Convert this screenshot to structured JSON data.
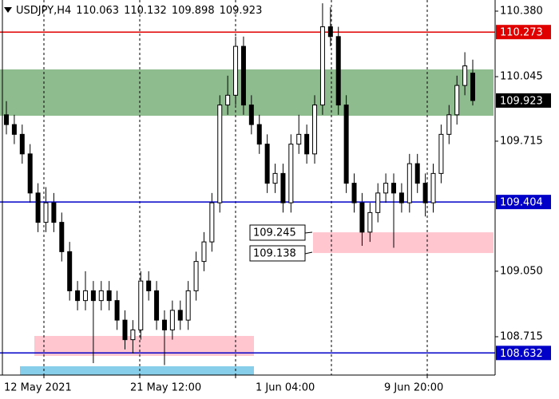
{
  "chart_data": {
    "type": "candlestick",
    "symbol": "USDJPY,H4",
    "ylim": [
      108.519,
      110.437
    ],
    "yticks": [
      {
        "value": 110.38,
        "label": "110.380"
      },
      110.045,
      109.715,
      {
        "value": 109.05,
        "label": "109.050"
      },
      108.715
    ],
    "x_labels": [
      "12 May 2021",
      "21 May 12:00",
      "1 Jun 04:00",
      "9 Jun 20:00"
    ],
    "levels": [
      {
        "value": 110.273,
        "color": "#e00000"
      },
      {
        "value": 109.404,
        "color": "#0000c8"
      },
      {
        "value": 108.632,
        "color": "#0000c8"
      }
    ],
    "zones": [
      {
        "low": 109.845,
        "high": 110.082,
        "color": "#8fbc8f"
      },
      {
        "low": 109.143,
        "high": 109.249,
        "color": "#ffc6d0"
      },
      {
        "low": 108.617,
        "high": 108.719,
        "color": "#ffc6d0"
      },
      {
        "low": 108.519,
        "high": 108.564,
        "color": "#87ceeb"
      }
    ],
    "zone_labels": [
      109.245,
      109.138
    ],
    "ohlc": [
      [
        109.85,
        109.92,
        109.75,
        109.8
      ],
      [
        109.8,
        109.85,
        109.7,
        109.75
      ],
      [
        109.75,
        109.8,
        109.6,
        109.65
      ],
      [
        109.65,
        109.7,
        109.4,
        109.45
      ],
      [
        109.45,
        109.5,
        109.25,
        109.3
      ],
      [
        109.3,
        109.48,
        109.25,
        109.4
      ],
      [
        109.4,
        109.45,
        109.25,
        109.3
      ],
      [
        109.3,
        109.35,
        109.1,
        109.15
      ],
      [
        109.15,
        109.2,
        108.9,
        108.95
      ],
      [
        108.95,
        109.0,
        108.85,
        108.9
      ],
      [
        108.9,
        109.05,
        108.85,
        108.95
      ],
      [
        108.95,
        109.0,
        108.58,
        108.9
      ],
      [
        108.9,
        109.0,
        108.85,
        108.95
      ],
      [
        108.95,
        109.0,
        108.85,
        108.9
      ],
      [
        108.9,
        108.95,
        108.75,
        108.8
      ],
      [
        108.8,
        108.85,
        108.65,
        108.7
      ],
      [
        108.7,
        108.8,
        108.63,
        108.75
      ],
      [
        108.75,
        109.05,
        108.7,
        109.0
      ],
      [
        109.0,
        109.05,
        108.9,
        108.95
      ],
      [
        108.95,
        109.0,
        108.75,
        108.8
      ],
      [
        108.8,
        108.85,
        108.57,
        108.75
      ],
      [
        108.75,
        108.9,
        108.7,
        108.85
      ],
      [
        108.85,
        108.9,
        108.75,
        108.8
      ],
      [
        108.8,
        109.0,
        108.75,
        108.95
      ],
      [
        108.95,
        109.15,
        108.9,
        109.1
      ],
      [
        109.1,
        109.25,
        109.05,
        109.2
      ],
      [
        109.2,
        109.45,
        109.15,
        109.4
      ],
      [
        109.4,
        109.95,
        109.35,
        109.9
      ],
      [
        109.9,
        110.05,
        109.85,
        109.95
      ],
      [
        109.95,
        110.25,
        109.9,
        110.2
      ],
      [
        110.2,
        110.25,
        109.85,
        109.9
      ],
      [
        109.9,
        109.95,
        109.75,
        109.8
      ],
      [
        109.8,
        109.85,
        109.65,
        109.7
      ],
      [
        109.7,
        109.75,
        109.45,
        109.5
      ],
      [
        109.5,
        109.6,
        109.45,
        109.55
      ],
      [
        109.55,
        109.6,
        109.35,
        109.4
      ],
      [
        109.4,
        109.75,
        109.35,
        109.7
      ],
      [
        109.7,
        109.85,
        109.65,
        109.75
      ],
      [
        109.75,
        109.8,
        109.6,
        109.65
      ],
      [
        109.65,
        109.95,
        109.6,
        109.9
      ],
      [
        109.9,
        110.42,
        109.85,
        110.3
      ],
      [
        110.3,
        110.4,
        110.2,
        110.25
      ],
      [
        110.25,
        110.3,
        109.85,
        109.9
      ],
      [
        109.9,
        109.95,
        109.45,
        109.5
      ],
      [
        109.5,
        109.55,
        109.35,
        109.4
      ],
      [
        109.4,
        109.45,
        109.18,
        109.25
      ],
      [
        109.25,
        109.4,
        109.2,
        109.35
      ],
      [
        109.35,
        109.5,
        109.3,
        109.45
      ],
      [
        109.45,
        109.55,
        109.4,
        109.5
      ],
      [
        109.5,
        109.55,
        109.17,
        109.45
      ],
      [
        109.45,
        109.5,
        109.35,
        109.4
      ],
      [
        109.4,
        109.65,
        109.35,
        109.6
      ],
      [
        109.6,
        109.65,
        109.45,
        109.5
      ],
      [
        109.5,
        109.55,
        109.33,
        109.4
      ],
      [
        109.4,
        109.6,
        109.35,
        109.55
      ],
      [
        109.55,
        109.8,
        109.5,
        109.75
      ],
      [
        109.75,
        109.9,
        109.7,
        109.85
      ],
      [
        109.85,
        110.05,
        109.8,
        110.0
      ],
      [
        110.0,
        110.17,
        109.95,
        110.1
      ],
      [
        110.063,
        110.132,
        109.898,
        109.923
      ]
    ]
  }
}
